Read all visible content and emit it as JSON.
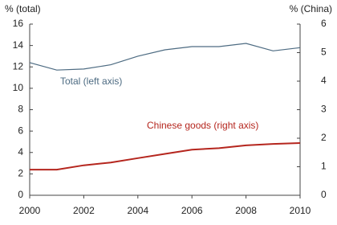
{
  "chart_data": {
    "type": "line",
    "y_label": "% (total)",
    "y2_label": "% (China)",
    "x": [
      2000,
      2001,
      2002,
      2003,
      2004,
      2005,
      2006,
      2007,
      2008,
      2009,
      2010
    ],
    "xlim": [
      2000,
      2010
    ],
    "xticks": [
      2000,
      2002,
      2004,
      2006,
      2008,
      2010
    ],
    "ylim": [
      0,
      16
    ],
    "yticks": [
      0,
      2,
      4,
      6,
      8,
      10,
      12,
      14,
      16
    ],
    "y2lim": [
      0,
      6
    ],
    "y2ticks": [
      0,
      1,
      2,
      3,
      4,
      5,
      6
    ],
    "grid": false,
    "series": [
      {
        "name": "Total (left axis)",
        "color": "#4d6b82",
        "values": [
          12.4,
          11.7,
          11.8,
          12.2,
          13.0,
          13.6,
          13.9,
          13.9,
          14.2,
          13.5,
          13.8
        ]
      },
      {
        "name": "Chinese goods (right axis)",
        "color": "#b5261e",
        "axis": "y2",
        "values": [
          0.9,
          0.9,
          1.05,
          1.15,
          1.3,
          1.45,
          1.6,
          1.65,
          1.75,
          1.8,
          1.83
        ]
      }
    ]
  }
}
